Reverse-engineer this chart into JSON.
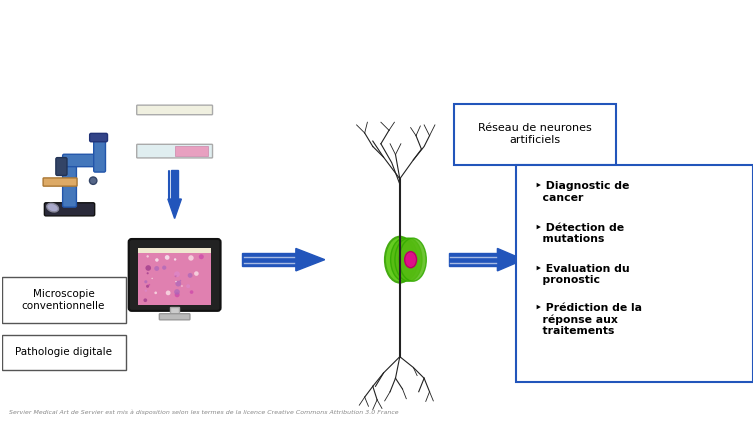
{
  "title": "",
  "background_color": "#ffffff",
  "caption": "Servier Medical Art de Servier est mis à disposition selon les termes de la licence Creative Commons Attribution 3.0 France",
  "label_microscopy": "Microscopie\nconventionnelle",
  "label_digital": "Pathologie digitale",
  "label_neural": "Réseau de neurones\nartificiels",
  "bullet_items": [
    "‣ Diagnostic de\n  cancer",
    "‣ Détection de\n  mutations",
    "‣ Evaluation du\n  pronostic",
    "‣ Prédiction de la\n  réponse aux\n  traitements"
  ],
  "arrow_color": "#2255bb",
  "box_color": "#2255bb",
  "figsize": [
    7.54,
    4.22
  ],
  "dpi": 100
}
